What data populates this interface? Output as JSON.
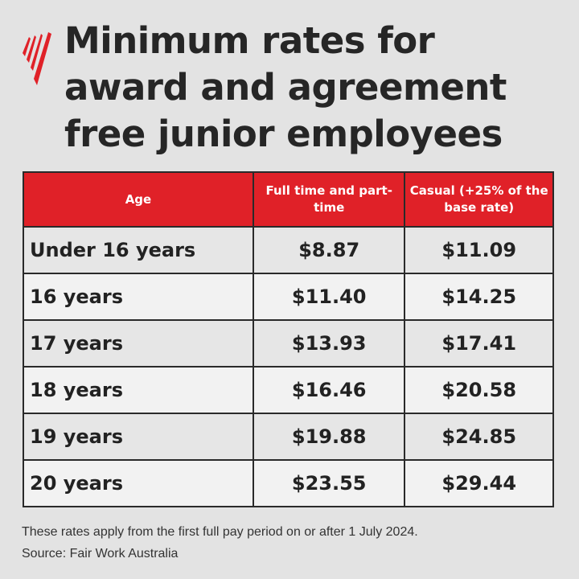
{
  "logo": {
    "name": "SBS",
    "color": "#e02128"
  },
  "title": {
    "lines": [
      "Minimum rates for",
      "award and agreement",
      "free junior employees"
    ]
  },
  "table": {
    "headers": [
      "Age",
      "Full time and part-time",
      "Casual (+25% of the base rate)"
    ],
    "header_color": "#e02128",
    "rows": [
      [
        "Under 16 years",
        "$8.87",
        "$11.09"
      ],
      [
        "16 years",
        "$11.40",
        "$14.25"
      ],
      [
        "17 years",
        "$13.93",
        "$17.41"
      ],
      [
        "18 years",
        "$16.46",
        "$20.58"
      ],
      [
        "19 years",
        "$19.88",
        "$24.85"
      ],
      [
        "20 years",
        "$23.55",
        "$29.44"
      ]
    ]
  },
  "footer": {
    "note": "These rates apply from the first full pay period on or after 1 July 2024.",
    "source": "Source: Fair Work Australia"
  }
}
